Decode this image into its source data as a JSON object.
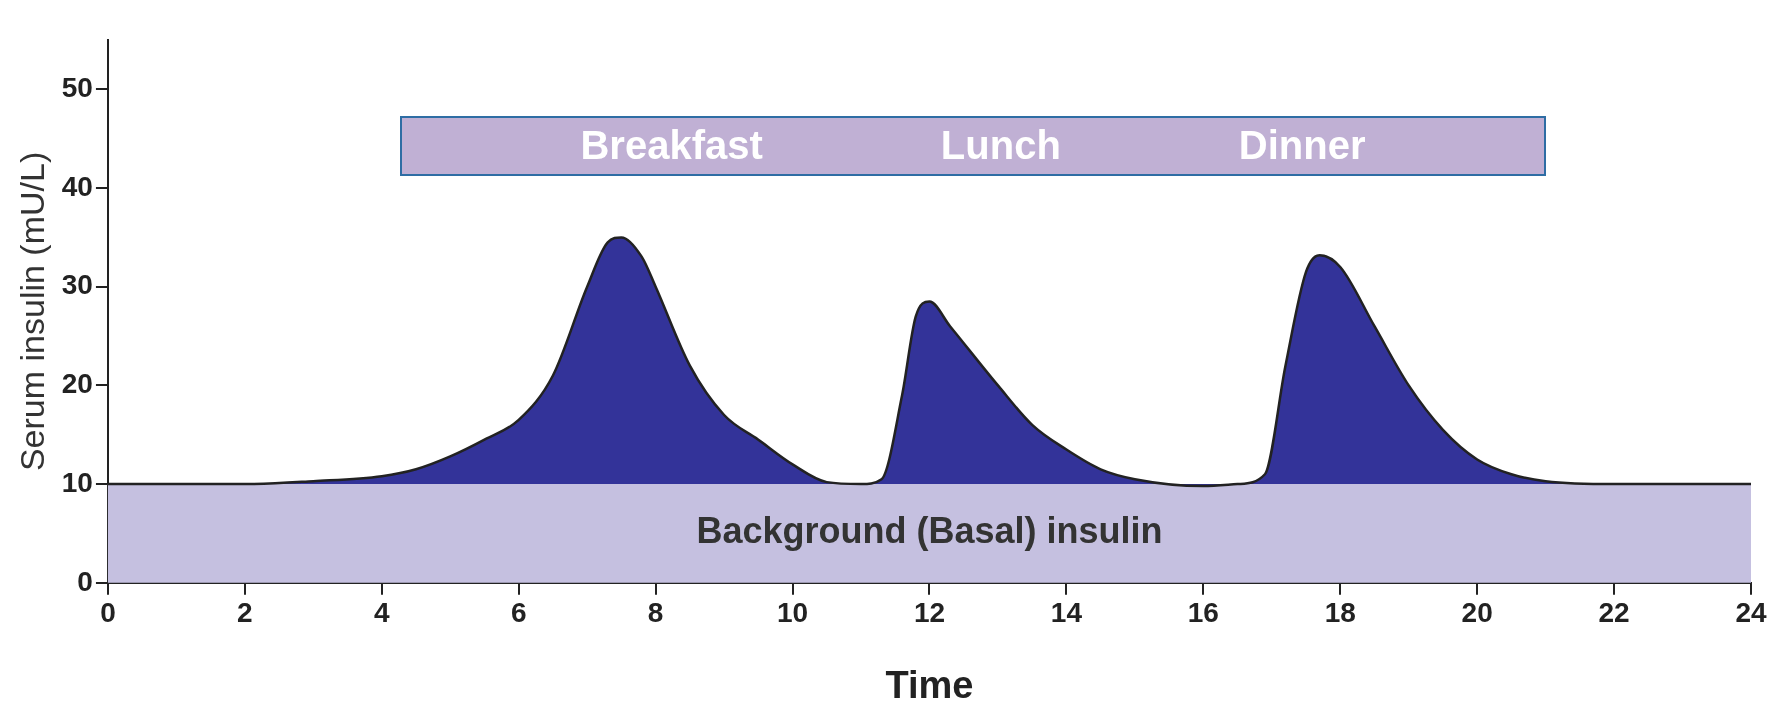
{
  "chart_data": {
    "type": "area",
    "xlabel": "Time",
    "ylabel": "Serum insulin (mU/L)",
    "xlim": [
      0,
      24
    ],
    "xticks": [
      0,
      2,
      4,
      6,
      8,
      10,
      12,
      14,
      16,
      18,
      20,
      22,
      24
    ],
    "ylim": [
      0,
      55
    ],
    "yticks": [
      0,
      10,
      20,
      30,
      40,
      50
    ],
    "grid": false,
    "legend": false,
    "marker": "none",
    "series": [
      {
        "color": "#333399",
        "x": [
          0,
          2,
          3,
          4,
          4.5,
          5,
          5.5,
          6,
          6.5,
          7,
          7.3,
          7.5,
          7.8,
          8,
          8.5,
          9,
          9.5,
          10,
          10.5,
          11,
          11.3,
          11.6,
          11.8,
          12,
          12.3,
          13,
          13.5,
          14,
          14.5,
          15,
          16,
          16.5,
          16.9,
          17.2,
          17.5,
          17.7,
          18,
          18.5,
          19,
          19.5,
          20,
          20.5,
          21,
          22,
          24
        ],
        "values": [
          10,
          10,
          10.3,
          10.8,
          11.5,
          12.8,
          14.5,
          16.5,
          21,
          30,
          34.5,
          35,
          33,
          30,
          22,
          17,
          14.5,
          12,
          10.2,
          10,
          10.5,
          19,
          27,
          28.5,
          26,
          20,
          16,
          13.5,
          11.5,
          10.5,
          9.8,
          10,
          11,
          22,
          31.5,
          33.2,
          32,
          26,
          20,
          15.5,
          12.5,
          11,
          10.3,
          10,
          10
        ]
      }
    ],
    "bands": [
      {
        "axis": "y",
        "from": 0,
        "to": 10,
        "label": "Background (Basal) insulin",
        "color": "#c5c0e0"
      }
    ],
    "annotations": [
      "Breakfast",
      "Lunch",
      "Dinner"
    ]
  }
}
